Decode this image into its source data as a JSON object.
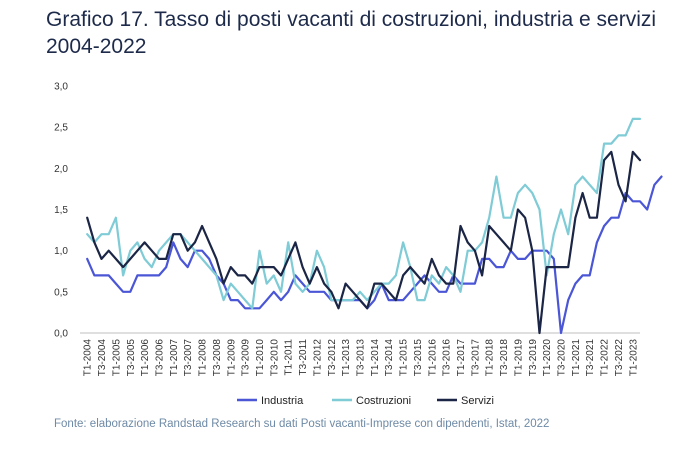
{
  "title": "Grafico 17. Tasso di posti vacanti di costruzioni, industria e servizi 2004-2022",
  "source": "Fonte: elaborazione Randstad Research su dati Posti vacanti-Imprese con dipendenti, Istat, 2022",
  "chart_data": {
    "type": "line",
    "title": "Grafico 17. Tasso di posti vacanti di costruzioni, industria e servizi 2004-2022",
    "xlabel": "",
    "ylabel": "",
    "ylim": [
      0,
      3
    ],
    "yticks": [
      "0,0",
      "0,5",
      "1,0",
      "1,5",
      "2,0",
      "2,5",
      "3,0"
    ],
    "grid": false,
    "legend": "bottom",
    "x_start": "T1-2004",
    "xtick_labels": [
      "T1-2004",
      "T3-2004",
      "T1-2005",
      "T3-2005",
      "T1-2006",
      "T3-2006",
      "T1-2007",
      "T3-2007",
      "T1-2008",
      "T3-2008",
      "T1-2009",
      "T3-2009",
      "T1-2010",
      "T3-2010",
      "T1-2011",
      "T3-2011",
      "T1-2012",
      "T3-2012",
      "T1-2013",
      "T3-2013",
      "T1-2014",
      "T3-2014",
      "T1-2015",
      "T3-2015",
      "T1-2016",
      "T3-2016",
      "T1-2017",
      "T3-2017",
      "T1-2018",
      "T3-2018",
      "T1-2019",
      "T3-2019",
      "T1-2020",
      "T3-2020",
      "T1-2021",
      "T3-2021",
      "T1-2022",
      "T3-2022",
      "T1-2023"
    ],
    "series": [
      {
        "name": "Industria",
        "color": "#4a56d6",
        "values": [
          0.9,
          0.7,
          0.7,
          0.7,
          0.6,
          0.5,
          0.5,
          0.7,
          0.7,
          0.7,
          0.7,
          0.8,
          1.1,
          0.9,
          0.8,
          1.0,
          1.0,
          0.9,
          0.7,
          0.6,
          0.4,
          0.4,
          0.3,
          0.3,
          0.3,
          0.4,
          0.5,
          0.4,
          0.5,
          0.7,
          0.6,
          0.5,
          0.5,
          0.5,
          0.4,
          0.4,
          0.4,
          0.4,
          0.4,
          0.3,
          0.4,
          0.6,
          0.4,
          0.4,
          0.4,
          0.5,
          0.6,
          0.7,
          0.6,
          0.5,
          0.5,
          0.7,
          0.6,
          0.6,
          0.6,
          0.9,
          0.9,
          0.8,
          0.8,
          1.0,
          0.9,
          0.9,
          1.0,
          1.0,
          1.0,
          0.9,
          0.0,
          0.4,
          0.6,
          0.7,
          0.7,
          1.1,
          1.3,
          1.4,
          1.4,
          1.7,
          1.6,
          1.6,
          1.5,
          1.8,
          1.9
        ]
      },
      {
        "name": "Costruzioni",
        "color": "#7fcbd6",
        "values": [
          1.2,
          1.1,
          1.2,
          1.2,
          1.4,
          0.7,
          1.0,
          1.1,
          0.9,
          0.8,
          1.0,
          1.1,
          1.2,
          1.2,
          1.1,
          1.0,
          0.9,
          0.8,
          0.7,
          0.4,
          0.6,
          0.5,
          0.4,
          0.3,
          1.0,
          0.6,
          0.7,
          0.5,
          1.1,
          0.6,
          0.5,
          0.6,
          1.0,
          0.8,
          0.4,
          0.4,
          0.4,
          0.4,
          0.5,
          0.4,
          0.5,
          0.6,
          0.6,
          0.7,
          1.1,
          0.8,
          0.4,
          0.4,
          0.7,
          0.6,
          0.8,
          0.7,
          0.5,
          1.0,
          1.0,
          1.1,
          1.4,
          1.9,
          1.4,
          1.4,
          1.7,
          1.8,
          1.7,
          1.5,
          0.7,
          1.2,
          1.5,
          1.2,
          1.8,
          1.9,
          1.8,
          1.7,
          2.3,
          2.3,
          2.4,
          2.4,
          2.6,
          2.6
        ]
      },
      {
        "name": "Servizi",
        "color": "#1b2545",
        "values": [
          1.4,
          1.1,
          0.9,
          1.0,
          0.9,
          0.8,
          0.9,
          1.0,
          1.1,
          1.0,
          0.9,
          0.9,
          1.2,
          1.2,
          1.0,
          1.1,
          1.3,
          1.1,
          0.9,
          0.6,
          0.8,
          0.7,
          0.7,
          0.6,
          0.8,
          0.8,
          0.8,
          0.7,
          0.9,
          1.1,
          0.8,
          0.6,
          0.8,
          0.6,
          0.5,
          0.3,
          0.6,
          0.5,
          0.4,
          0.3,
          0.6,
          0.6,
          0.5,
          0.4,
          0.7,
          0.8,
          0.7,
          0.6,
          0.9,
          0.7,
          0.6,
          0.6,
          1.3,
          1.1,
          1.0,
          0.7,
          1.3,
          1.2,
          1.1,
          1.0,
          1.5,
          1.4,
          1.0,
          0.0,
          0.8,
          0.8,
          0.8,
          0.8,
          1.4,
          1.7,
          1.4,
          1.4,
          2.1,
          2.2,
          1.8,
          1.6,
          2.2,
          2.1
        ]
      }
    ]
  }
}
